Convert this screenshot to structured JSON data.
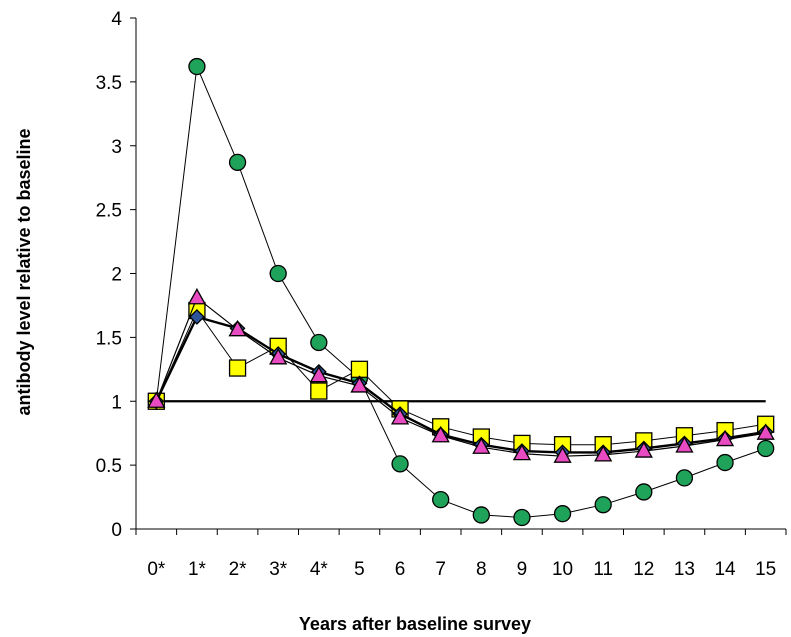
{
  "chart_data": {
    "type": "line",
    "title": "",
    "xlabel": "Years after baseline survey",
    "ylabel": "antibody level relative to baseline",
    "categories": [
      "0*",
      "1*",
      "2*",
      "3*",
      "4*",
      "5",
      "6",
      "7",
      "8",
      "9",
      "10",
      "11",
      "12",
      "13",
      "14",
      "15"
    ],
    "ylim": [
      0,
      4
    ],
    "yticks": [
      "0",
      "0.5",
      "1",
      "1.5",
      "2",
      "2.5",
      "3",
      "3.5",
      "4"
    ],
    "grid": false,
    "legend": "none",
    "reference_line": {
      "value": 1,
      "color": "#000000"
    },
    "series": [
      {
        "marker": "circle",
        "color": "#1fa35a",
        "values": [
          1.0,
          3.62,
          2.87,
          2.0,
          1.46,
          1.18,
          0.51,
          0.23,
          0.11,
          0.09,
          0.12,
          0.19,
          0.29,
          0.4,
          0.52,
          0.63
        ]
      },
      {
        "marker": "square",
        "color": "#ffff00",
        "values": [
          1.0,
          1.71,
          1.26,
          1.43,
          1.08,
          1.25,
          0.94,
          0.8,
          0.72,
          0.67,
          0.66,
          0.66,
          0.69,
          0.73,
          0.77,
          0.82
        ]
      },
      {
        "marker": "diamond",
        "color": "#2e5597",
        "values": [
          1.0,
          1.66,
          1.57,
          1.37,
          1.23,
          1.14,
          0.9,
          0.74,
          0.66,
          0.61,
          0.6,
          0.6,
          0.63,
          0.67,
          0.71,
          0.76
        ]
      },
      {
        "marker": "triangle",
        "color": "#e84ac1",
        "values": [
          1.0,
          1.81,
          1.56,
          1.34,
          1.2,
          1.12,
          0.87,
          0.73,
          0.64,
          0.59,
          0.57,
          0.58,
          0.61,
          0.65,
          0.7,
          0.75
        ]
      }
    ]
  }
}
